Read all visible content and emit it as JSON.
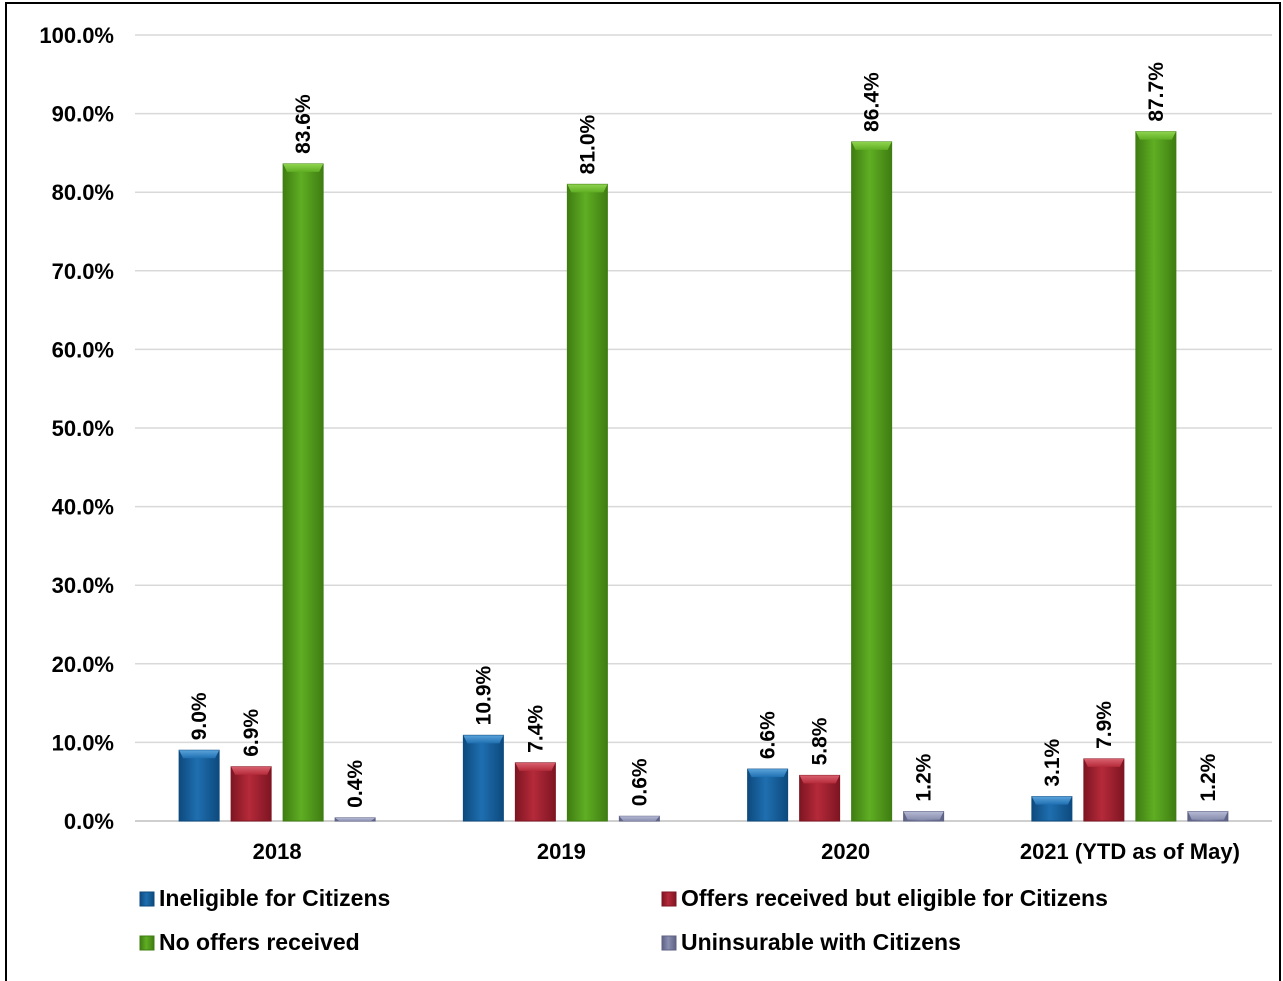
{
  "chart_data": {
    "type": "bar",
    "categories": [
      "2018",
      "2019",
      "2020",
      "2021 (YTD as of May)"
    ],
    "series": [
      {
        "name": "Ineligible for Citizens",
        "values": [
          9.0,
          10.9,
          6.6,
          3.1
        ],
        "labels": [
          "9.0%",
          "10.9%",
          "6.6%",
          "3.1%"
        ],
        "color": "#1f6fb0",
        "dark": "#0d4a7e",
        "light": "#5aa3dc"
      },
      {
        "name": "Offers received but eligible for Citizens",
        "values": [
          6.9,
          7.4,
          5.8,
          7.9
        ],
        "labels": [
          "6.9%",
          "7.4%",
          "5.8%",
          "7.9%"
        ],
        "color": "#b52a3a",
        "dark": "#7e1522",
        "light": "#d9606e"
      },
      {
        "name": "No offers received",
        "values": [
          83.6,
          81.0,
          86.4,
          87.7
        ],
        "labels": [
          "83.6%",
          "81.0%",
          "86.4%",
          "87.7%"
        ],
        "color": "#5fae23",
        "dark": "#3f7d12",
        "light": "#8fd44f"
      },
      {
        "name": "Uninsurable with Citizens",
        "values": [
          0.4,
          0.6,
          1.2,
          1.2
        ],
        "labels": [
          "0.4%",
          "0.6%",
          "1.2%",
          "1.2%"
        ],
        "color": "#8a8fb0",
        "dark": "#5d6285",
        "light": "#b5b9d3"
      }
    ],
    "yticks": [
      "0.0%",
      "10.0%",
      "20.0%",
      "30.0%",
      "40.0%",
      "50.0%",
      "60.0%",
      "70.0%",
      "80.0%",
      "90.0%",
      "100.0%"
    ],
    "ylim": [
      0,
      100
    ],
    "grid": true,
    "legend_position": "bottom",
    "title": "",
    "xlabel": "",
    "ylabel": ""
  }
}
